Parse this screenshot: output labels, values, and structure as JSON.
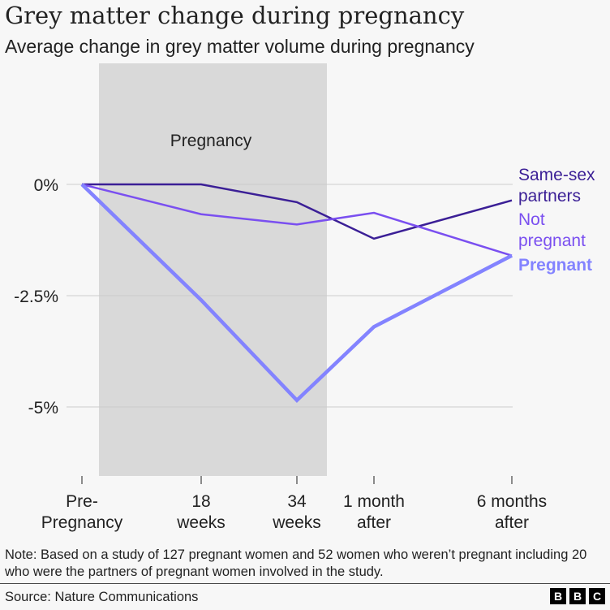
{
  "chart_data": {
    "type": "line",
    "title": "Grey matter change during pregnancy",
    "subtitle": "Average change in grey matter volume during pregnancy",
    "categories": [
      [
        "Pre-",
        "Pregnancy"
      ],
      [
        "18",
        "weeks"
      ],
      [
        "34",
        "weeks"
      ],
      [
        "1 month",
        "after"
      ],
      [
        "6 months",
        "after"
      ]
    ],
    "yticks": [
      {
        "v": 0,
        "label": "0%"
      },
      {
        "v": -2.5,
        "label": "-2.5%"
      },
      {
        "v": -5,
        "label": "-5%"
      }
    ],
    "ylim": [
      -6.5,
      1.2
    ],
    "grid": true,
    "shaded_region": {
      "label": "Pregnancy",
      "from": "Pre-Pregnancy",
      "to": "34 weeks",
      "color": "#d9d9d9"
    },
    "series": [
      {
        "name": "Same-sex partners",
        "label_lines": [
          "Same-sex",
          "partners"
        ],
        "color": "#3b1f96",
        "values": [
          0,
          0,
          -0.4,
          -1.22,
          -0.36
        ],
        "width": 2.5,
        "bold": false
      },
      {
        "name": "Not pregnant",
        "label_lines": [
          "Not",
          "pregnant"
        ],
        "color": "#7a4ff0",
        "values": [
          0,
          -0.67,
          -0.9,
          -0.64,
          -1.6
        ],
        "width": 2.5,
        "bold": false
      },
      {
        "name": "Pregnant",
        "label_lines": [
          "Pregnant"
        ],
        "color": "#8383ff",
        "values": [
          0,
          -2.6,
          -4.85,
          -3.2,
          -1.6
        ],
        "width": 4.5,
        "bold": true
      }
    ]
  },
  "note": "Note: Based on a study of 127 pregnant women and 52 women who weren’t pregnant including 20 who were the partners of pregnant women involved in the study.",
  "source": "Source: Nature Communications",
  "logo": [
    "B",
    "B",
    "C"
  ]
}
